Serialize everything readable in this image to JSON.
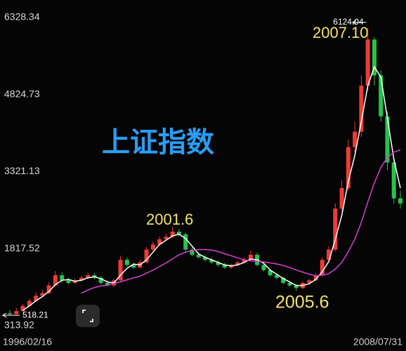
{
  "chart_data": {
    "type": "candlestick",
    "title": "上证指数",
    "annotations": [
      "2001.6",
      "2005.6",
      "2007.10"
    ],
    "categories": [
      "1996/02/16",
      null,
      null,
      null,
      null,
      null,
      null,
      null,
      null,
      null,
      null,
      null,
      null,
      null,
      null,
      null,
      null,
      null,
      null,
      null,
      null,
      null,
      null,
      null,
      null,
      null,
      null,
      null,
      null,
      null,
      null,
      null,
      null,
      null,
      null,
      null,
      null,
      null,
      null,
      null,
      null,
      null,
      null,
      null,
      null,
      null,
      null,
      null,
      null,
      null,
      null,
      null,
      null,
      null,
      null,
      null,
      null,
      null,
      null,
      null,
      "2008/07/31"
    ],
    "open": [
      560,
      540,
      600,
      700,
      800,
      900,
      950,
      1100,
      1300,
      1200,
      1150,
      1200,
      1250,
      1300,
      1250,
      1150,
      1100,
      1200,
      1600,
      1500,
      1450,
      1550,
      1800,
      1900,
      2000,
      2050,
      2150,
      2100,
      1800,
      1700,
      1650,
      1600,
      1550,
      1500,
      1450,
      1500,
      1550,
      1600,
      1700,
      1500,
      1400,
      1300,
      1250,
      1150,
      1100,
      1050,
      1150,
      1200,
      1300,
      1600,
      1800,
      2600,
      3000,
      3800,
      4100,
      5000,
      5900,
      5200,
      4400,
      3500,
      2800
    ],
    "high": [
      620,
      660,
      740,
      840,
      960,
      1010,
      1160,
      1380,
      1360,
      1250,
      1240,
      1290,
      1350,
      1340,
      1290,
      1200,
      1230,
      1680,
      1650,
      1540,
      1600,
      1850,
      1960,
      2050,
      2110,
      2245,
      2200,
      2130,
      1840,
      1740,
      1690,
      1640,
      1590,
      1540,
      1530,
      1580,
      1650,
      1780,
      1740,
      1530,
      1430,
      1340,
      1280,
      1190,
      1130,
      1180,
      1230,
      1340,
      1650,
      1860,
      2700,
      3150,
      3950,
      4300,
      5200,
      6124.04,
      5950,
      5300,
      4500,
      3600,
      2950
    ],
    "low": [
      518.21,
      530,
      590,
      680,
      780,
      880,
      930,
      1080,
      1150,
      1120,
      1130,
      1180,
      1230,
      1220,
      1120,
      1080,
      1080,
      1180,
      1460,
      1420,
      1430,
      1530,
      1770,
      1870,
      1970,
      2020,
      2060,
      1760,
      1670,
      1620,
      1570,
      1520,
      1470,
      1420,
      1420,
      1480,
      1530,
      1580,
      1470,
      1370,
      1270,
      1220,
      1120,
      1070,
      998,
      1030,
      1130,
      1180,
      1280,
      1570,
      1760,
      2550,
      2950,
      3700,
      4000,
      4900,
      5000,
      4300,
      3350,
      2700,
      2600
    ],
    "close": [
      540,
      600,
      700,
      800,
      900,
      950,
      1100,
      1300,
      1200,
      1150,
      1200,
      1250,
      1300,
      1250,
      1150,
      1100,
      1200,
      1600,
      1500,
      1450,
      1550,
      1800,
      1900,
      2000,
      2050,
      2150,
      2100,
      1800,
      1700,
      1650,
      1600,
      1550,
      1500,
      1450,
      1500,
      1550,
      1600,
      1700,
      1500,
      1400,
      1300,
      1250,
      1150,
      1100,
      1050,
      1150,
      1200,
      1300,
      1600,
      1800,
      2600,
      3000,
      3800,
      4100,
      5000,
      5900,
      5200,
      4400,
      3500,
      2800,
      2700
    ],
    "up_color": "#ef3b36",
    "down_color": "#27c24c",
    "series": [
      {
        "color": "#ffffff",
        "values": [
          null,
          null,
          613,
          700,
          800,
          883,
          983,
          1117,
          1200,
          1217,
          1183,
          1200,
          1250,
          1267,
          1233,
          1167,
          1150,
          1300,
          1433,
          1517,
          1500,
          1600,
          1750,
          1900,
          1983,
          2067,
          2100,
          2017,
          1867,
          1717,
          1650,
          1600,
          1550,
          1500,
          1483,
          1500,
          1550,
          1617,
          1600,
          1533,
          1400,
          1317,
          1233,
          1167,
          1100,
          1100,
          1133,
          1217,
          1367,
          1567,
          2000,
          2467,
          3133,
          3633,
          4300,
          5000,
          5367,
          5167,
          4367,
          3567,
          3000
        ]
      },
      {
        "color": "#d63fd6",
        "values": [
          null,
          null,
          null,
          null,
          null,
          null,
          null,
          null,
          null,
          null,
          null,
          950,
          1010,
          1060,
          1090,
          1110,
          1140,
          1170,
          1210,
          1250,
          1280,
          1340,
          1400,
          1470,
          1540,
          1620,
          1700,
          1750,
          1780,
          1800,
          1800,
          1790,
          1760,
          1720,
          1680,
          1640,
          1600,
          1580,
          1570,
          1560,
          1540,
          1520,
          1490,
          1450,
          1400,
          1360,
          1320,
          1290,
          1300,
          1330,
          1420,
          1550,
          1760,
          2000,
          2330,
          2730,
          3100,
          3400,
          3600,
          3700,
          3750
        ]
      }
    ],
    "ylim": [
      313.92,
      6328.34
    ],
    "yticks": [
      6328.34,
      4824.73,
      3321.13,
      1817.52,
      313.92
    ],
    "grid": false
  }
}
